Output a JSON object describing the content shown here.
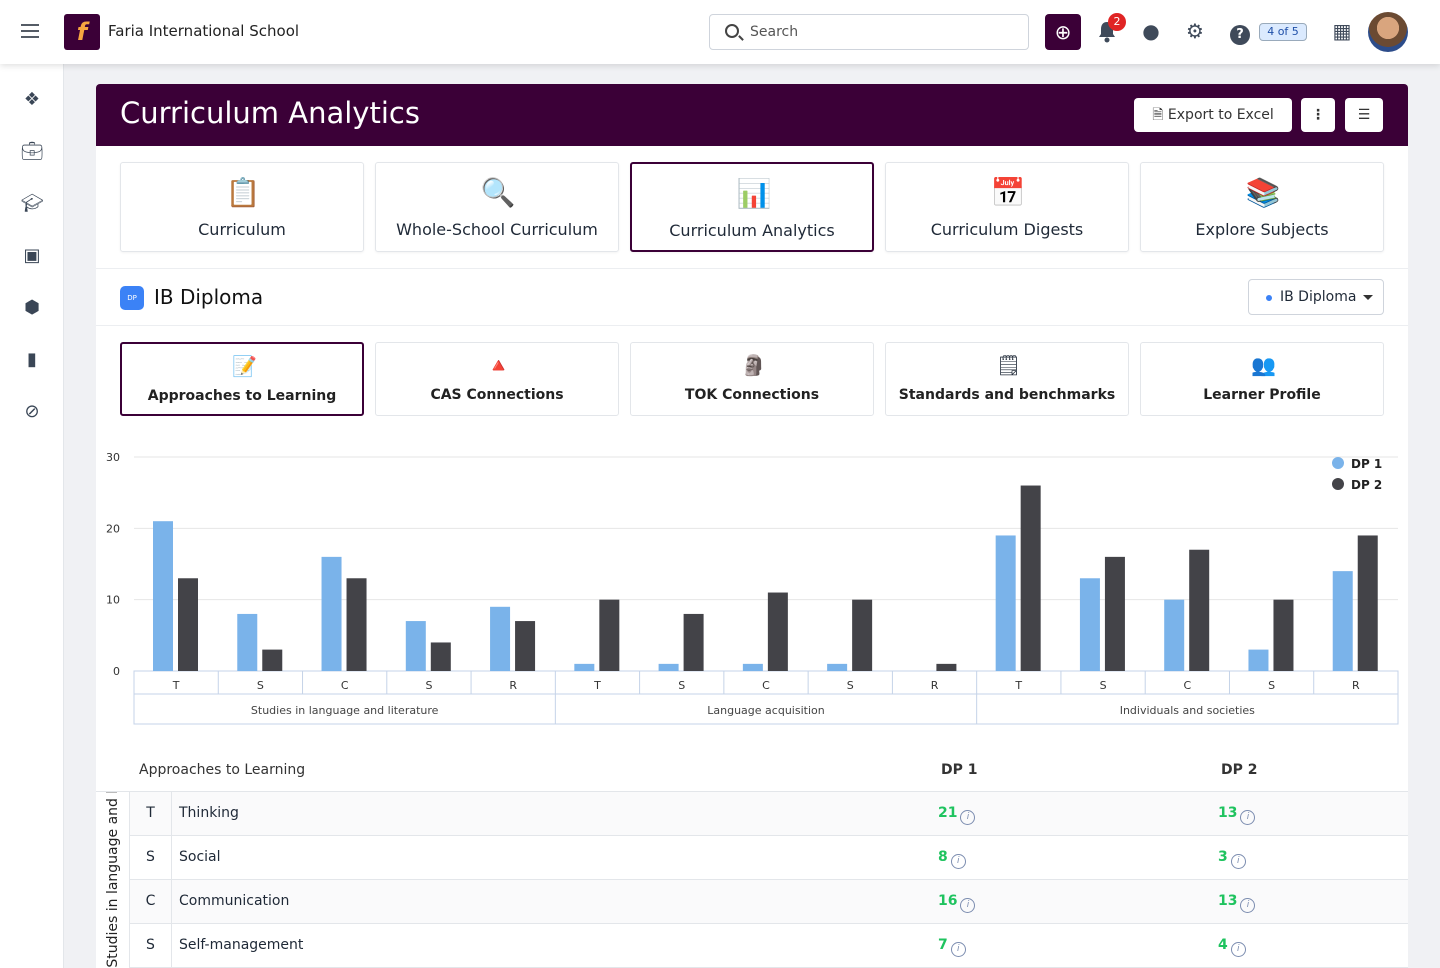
{
  "topbar": {
    "school": "Faria International School",
    "logo_letter": "f",
    "search_placeholder": "Search",
    "notifications": "2",
    "counter": "4 of 5"
  },
  "page": {
    "title": "Curriculum Analytics",
    "export_label": "Export to Excel"
  },
  "tiles": [
    {
      "label": "Curriculum",
      "icon": "clipboard-icon"
    },
    {
      "label": "Whole-School Curriculum",
      "icon": "magnifier-icon"
    },
    {
      "label": "Curriculum Analytics",
      "icon": "bar-chart-icon",
      "active": true
    },
    {
      "label": "Curriculum Digests",
      "icon": "calendar-icon"
    },
    {
      "label": "Explore Subjects",
      "icon": "books-icon"
    }
  ],
  "section": {
    "badge": "DP",
    "title": "IB Diploma",
    "select_value": "IB Diploma"
  },
  "subtabs": [
    {
      "label": "Approaches to Learning",
      "icon": "pencil-icon",
      "active": true
    },
    {
      "label": "CAS Connections",
      "icon": "shapes-icon"
    },
    {
      "label": "TOK Connections",
      "icon": "thinker-icon"
    },
    {
      "label": "Standards and benchmarks",
      "icon": "checklist-icon"
    },
    {
      "label": "Learner Profile",
      "icon": "people-icon"
    }
  ],
  "chart_data": {
    "type": "bar",
    "yticks": [
      "0",
      "10",
      "20",
      "30"
    ],
    "ylim": [
      0,
      30
    ],
    "grid": true,
    "legend_position": "top-right",
    "groups": [
      {
        "name": "Studies in language and literature",
        "categories": [
          "T",
          "S",
          "C",
          "S",
          "R"
        ]
      },
      {
        "name": "Language acquisition",
        "categories": [
          "T",
          "S",
          "C",
          "S",
          "R"
        ]
      },
      {
        "name": "Individuals and societies",
        "categories": [
          "T",
          "S",
          "C",
          "S",
          "R"
        ]
      }
    ],
    "series": [
      {
        "name": "DP 1",
        "color": "#7ab3ea",
        "values": [
          21,
          8,
          16,
          7,
          9,
          1,
          1,
          1,
          1,
          0,
          19,
          13,
          10,
          3,
          14
        ]
      },
      {
        "name": "DP 2",
        "color": "#434348",
        "values": [
          13,
          3,
          13,
          4,
          7,
          10,
          8,
          11,
          10,
          1,
          26,
          16,
          17,
          10,
          19
        ]
      }
    ]
  },
  "table": {
    "header": "Approaches to Learning",
    "col1": "DP 1",
    "col2": "DP 2",
    "group_label": "Studies in language and literature",
    "rows": [
      {
        "code": "T",
        "name": "Thinking",
        "dp1": "21",
        "dp2": "13"
      },
      {
        "code": "S",
        "name": "Social",
        "dp1": "8",
        "dp2": "3"
      },
      {
        "code": "C",
        "name": "Communication",
        "dp1": "16",
        "dp2": "13"
      },
      {
        "code": "S",
        "name": "Self-management",
        "dp1": "7",
        "dp2": "4"
      }
    ]
  }
}
